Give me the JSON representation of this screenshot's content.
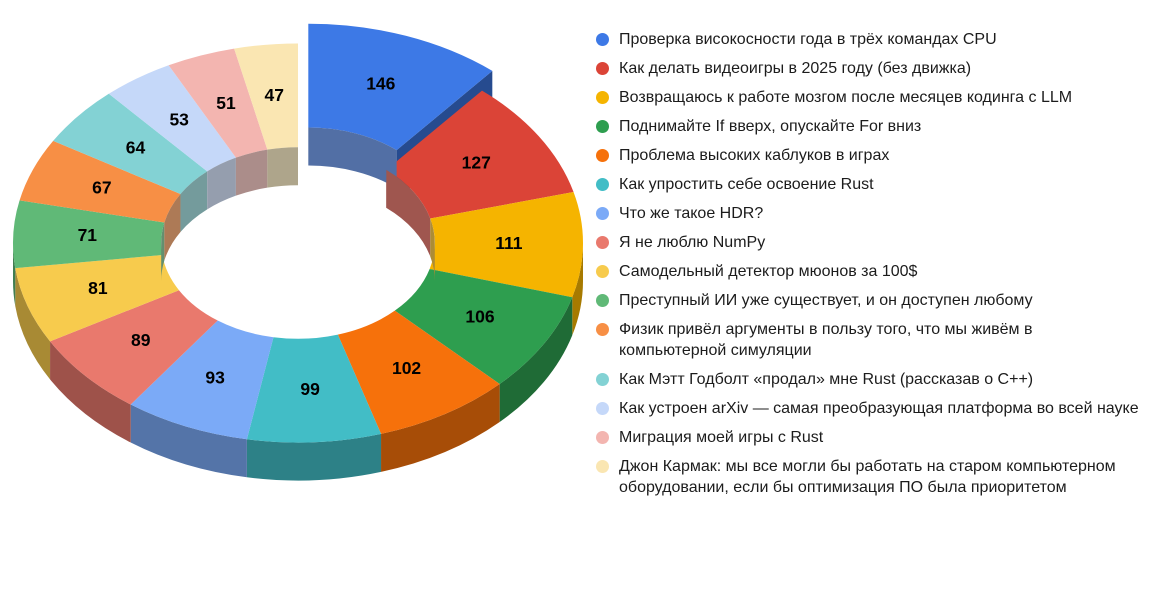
{
  "chart_data": {
    "type": "pie",
    "subtype": "3d-donut",
    "title": "",
    "legend_position": "right",
    "grid": false,
    "exploded_slice": 0,
    "total": 1307,
    "labels": [
      "Проверка високосности года в трёх командах CPU",
      "Как делать видеоигры в 2025 году (без движка)",
      "Возвращаюсь к работе мозгом после месяцев кодинга с LLM",
      "Поднимайте If вверх, опускайте For вниз",
      "Проблема высоких каблуков в играх",
      "Как упростить себе освоение Rust",
      "Что же такое HDR?",
      "Я не люблю NumPy",
      "Самодельный детектор мюонов за 100$",
      "Преступный ИИ уже существует, и он доступен любому",
      "Физик привёл аргументы в пользу того, что мы живём в компьютерной симуляции",
      "Как Мэтт Годболт «продал» мне Rust (рассказав о C++)",
      "Как устроен arXiv — самая преобразующая платформа во всей науке",
      "Миграция моей игры с Rust",
      "Джон Кармак: мы все могли бы работать на старом компьютерном оборудовании, если бы оптимизация ПО была приоритетом"
    ],
    "values": [
      146,
      127,
      111,
      106,
      102,
      99,
      93,
      89,
      81,
      71,
      67,
      64,
      53,
      51,
      47
    ],
    "colors": [
      "#3D79E6",
      "#DB4437",
      "#F5B400",
      "#2E9E4F",
      "#F6710B",
      "#42BDC6",
      "#7BAAF7",
      "#E9796D",
      "#F7CB4D",
      "#60B977",
      "#F78F45",
      "#83D2D4",
      "#C5D8F9",
      "#F3B5B0",
      "#FAE6B2"
    ]
  }
}
